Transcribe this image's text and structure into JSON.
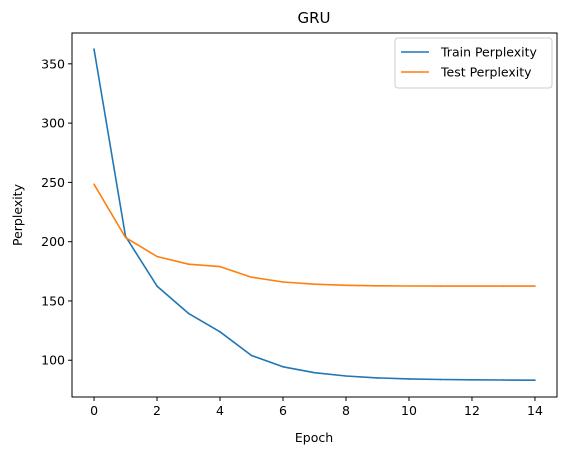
{
  "chart_data": {
    "type": "line",
    "title": "GRU",
    "xlabel": "Epoch",
    "ylabel": "Perplexity",
    "xlim": [
      -0.7,
      14.7
    ],
    "ylim": [
      69,
      376
    ],
    "xticks": [
      0,
      2,
      4,
      6,
      8,
      10,
      12,
      14
    ],
    "yticks": [
      100,
      150,
      200,
      250,
      300,
      350
    ],
    "grid": false,
    "legend_position": "upper right",
    "x": [
      0,
      1,
      2,
      3,
      4,
      5,
      6,
      7,
      8,
      9,
      10,
      11,
      12,
      13,
      14
    ],
    "series": [
      {
        "name": "Train Perplexity",
        "color": "#1f77b4",
        "values": [
          362.5,
          204.5,
          162.5,
          139.5,
          124,
          104,
          94.5,
          89.5,
          86.7,
          85.1,
          84.3,
          83.8,
          83.5,
          83.3,
          83.2
        ]
      },
      {
        "name": "Test Perplexity",
        "color": "#ff7f0e",
        "values": [
          248.5,
          203.5,
          187.5,
          181,
          179,
          170,
          166,
          164.1,
          163.2,
          162.8,
          162.6,
          162.5,
          162.5,
          162.5,
          162.5
        ]
      }
    ]
  }
}
